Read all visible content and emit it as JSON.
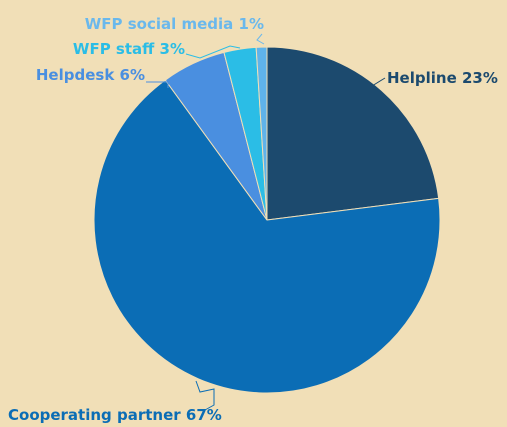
{
  "chart_data": {
    "type": "pie",
    "categories": [
      "Helpline",
      "Cooperating partner",
      "Helpdesk",
      "WFP staff",
      "WFP social media"
    ],
    "values": [
      23,
      67,
      6,
      3,
      1
    ],
    "value_labels": [
      "23%",
      "67%",
      "6%",
      "3%",
      "1%"
    ],
    "colors": [
      "#1c4a6e",
      "#0b6db5",
      "#4a8fe0",
      "#2bbde6",
      "#5fb3ea"
    ],
    "label_colors": [
      "#1c4a6e",
      "#0b6db5",
      "#4a8fe0",
      "#2bbde6",
      "#6ab8ec"
    ]
  }
}
